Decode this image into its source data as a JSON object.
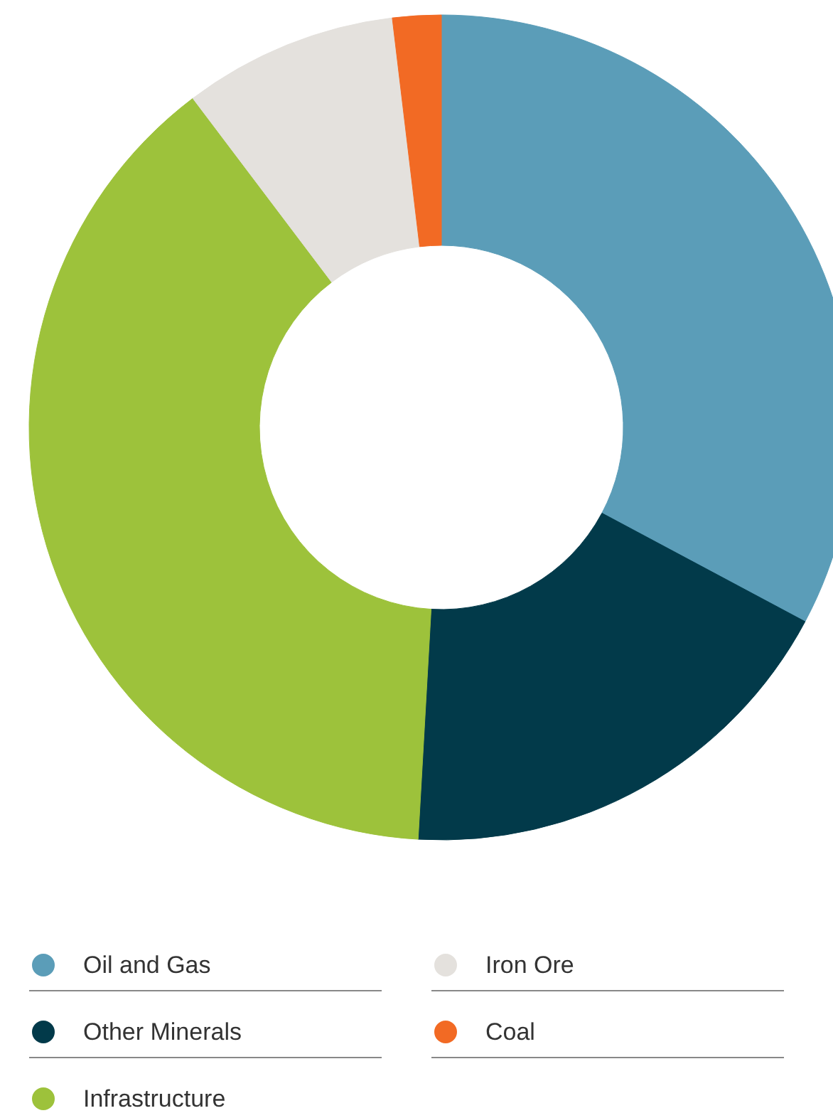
{
  "chart_data": {
    "type": "donut",
    "categories": [
      "Oil and Gas",
      "Other Minerals",
      "Infrastructure",
      "Iron Ore",
      "Coal"
    ],
    "values": [
      32.8,
      18.1,
      38.8,
      8.4,
      1.9
    ],
    "colors": [
      "#5b9db8",
      "#023a4a",
      "#9dc23b",
      "#e4e1dd",
      "#f26a24"
    ],
    "legend": "bottom"
  }
}
